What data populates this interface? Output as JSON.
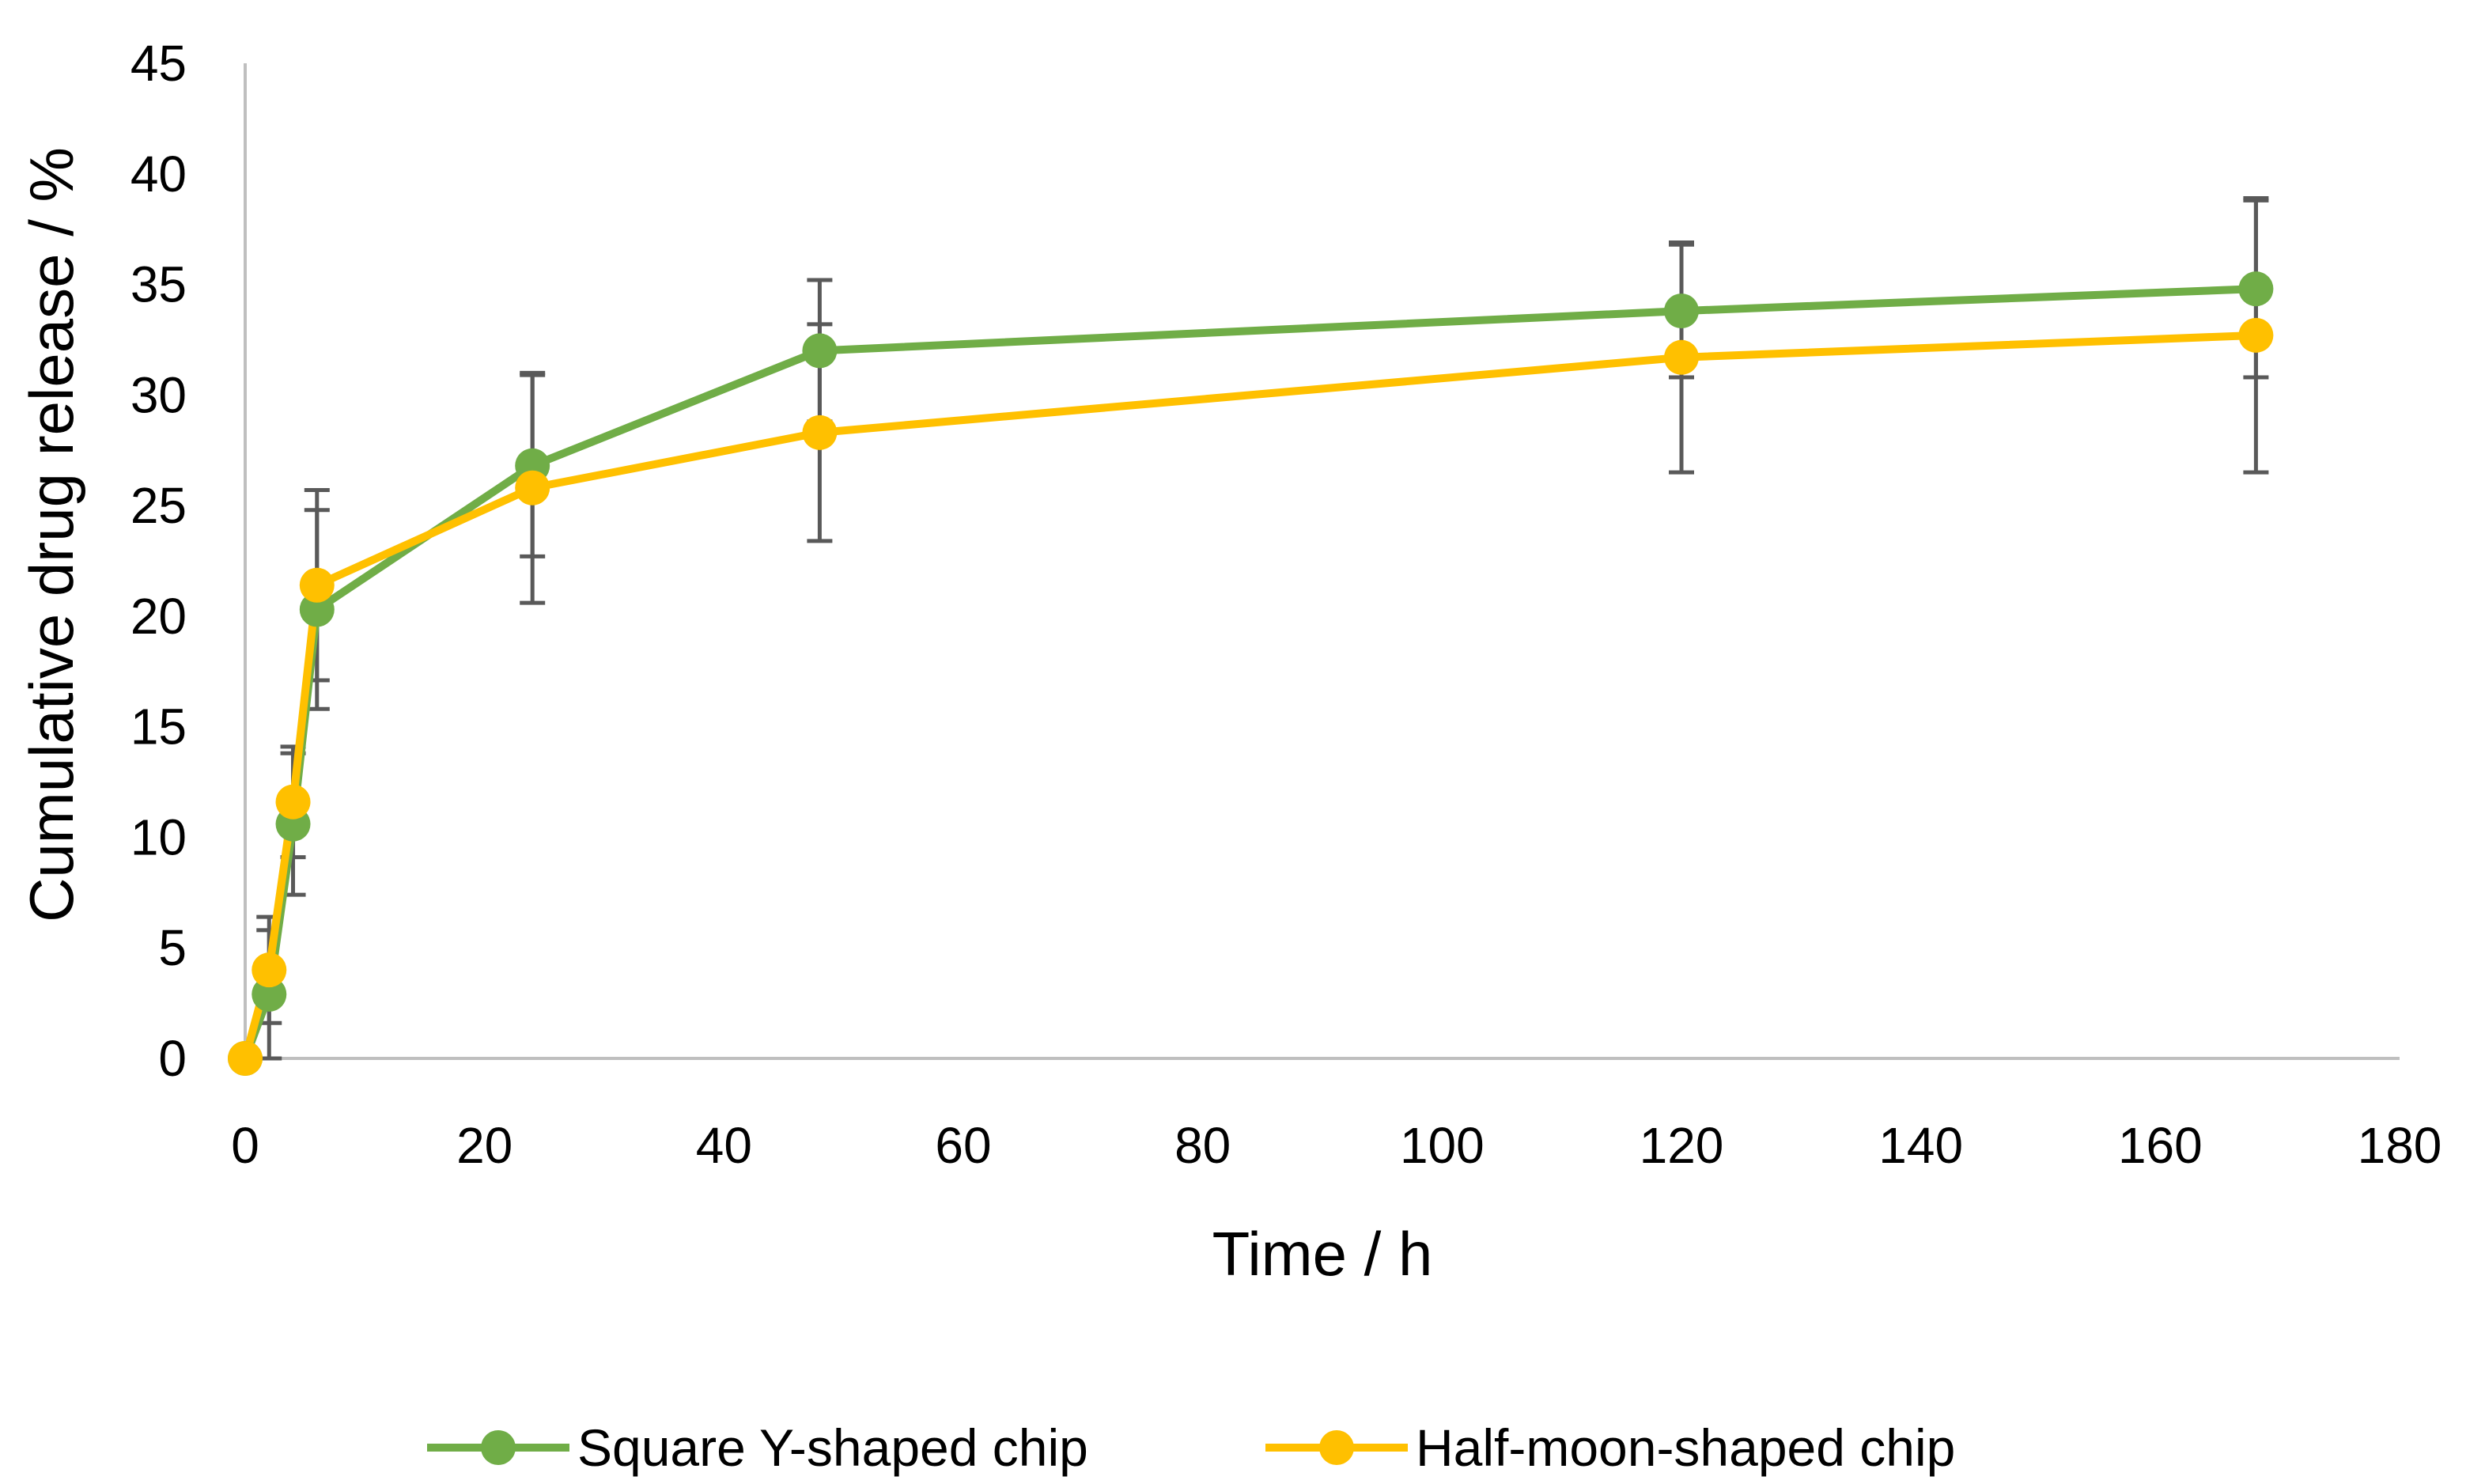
{
  "chart_data": {
    "type": "line",
    "title": "",
    "xlabel": "Time / h",
    "ylabel": "Cumulative drug release / %",
    "xlim": [
      0,
      180
    ],
    "ylim": [
      0,
      45
    ],
    "xticks": [
      0,
      20,
      40,
      60,
      80,
      100,
      120,
      140,
      160,
      180
    ],
    "yticks": [
      0,
      5,
      10,
      15,
      20,
      25,
      30,
      35,
      40,
      45
    ],
    "grid": false,
    "legend_position": "bottom",
    "series": [
      {
        "name": "Square Y-shaped chip",
        "color": "#70ad47",
        "x": [
          0,
          2,
          4,
          6,
          24,
          48,
          120,
          168
        ],
        "y": [
          0,
          2.9,
          10.6,
          20.3,
          26.8,
          32.0,
          33.8,
          34.8
        ],
        "error": [
          0,
          2.9,
          3.2,
          4.5,
          4.1,
          3.2,
          3.0,
          4.0
        ]
      },
      {
        "name": "Half-moon-shaped chip",
        "color": "#ffc000",
        "x": [
          0,
          2,
          4,
          6,
          24,
          48,
          120,
          168
        ],
        "y": [
          0,
          4.0,
          11.6,
          21.4,
          25.8,
          28.3,
          31.7,
          32.7
        ],
        "error": [
          0,
          2.4,
          2.5,
          4.3,
          5.2,
          4.9,
          5.2,
          6.2
        ]
      }
    ]
  }
}
